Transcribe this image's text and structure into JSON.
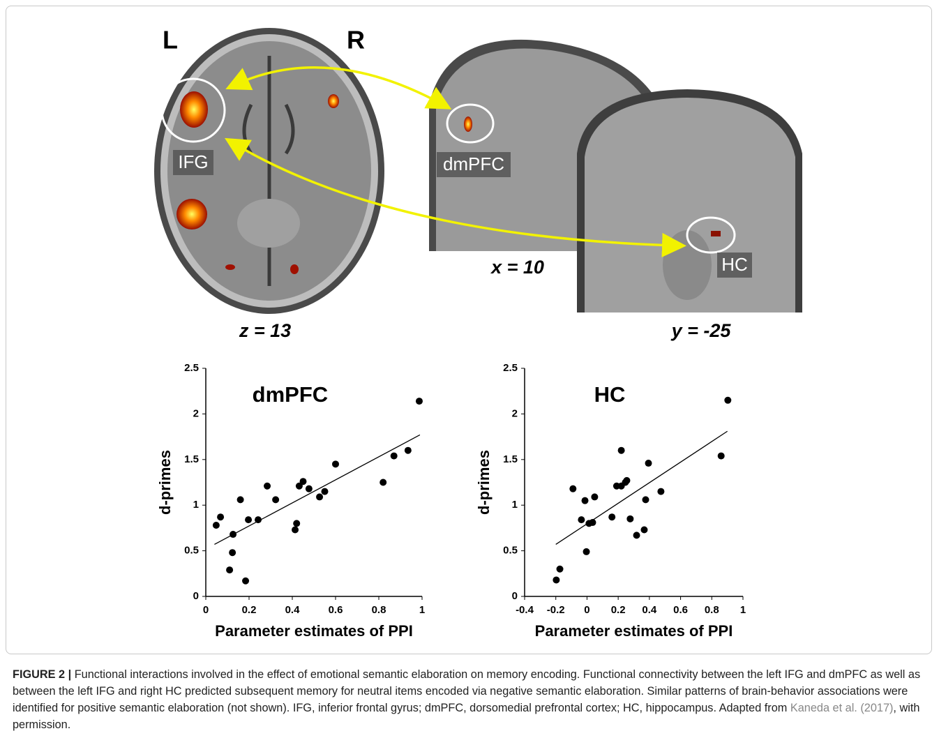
{
  "brain": {
    "left": "L",
    "right": "R",
    "ifg": "IFG",
    "dmpfc": "dmPFC",
    "hc": "HC",
    "axial": "z = 13",
    "sagittal": "x = 10",
    "coronal": "y = -25"
  },
  "chart_data": [
    {
      "type": "scatter",
      "title": "dmPFC",
      "x_label": "Parameter estimates of PPI",
      "y_label": "d-primes",
      "x": [
        0.048,
        0.068,
        0.16,
        0.126,
        0.123,
        0.11,
        0.184,
        0.197,
        0.242,
        0.284,
        0.323,
        0.413,
        0.42,
        0.432,
        0.45,
        0.477,
        0.526,
        0.55,
        0.6,
        0.82,
        0.87,
        0.935,
        0.987
      ],
      "values": [
        0.78,
        0.87,
        1.06,
        0.68,
        0.48,
        0.29,
        0.17,
        0.84,
        0.84,
        1.21,
        1.06,
        0.73,
        0.8,
        1.21,
        1.26,
        1.18,
        1.09,
        1.15,
        1.45,
        1.25,
        1.54,
        1.6,
        2.14
      ],
      "color": "#000000",
      "fit": {
        "x": [
          0.04,
          0.99
        ],
        "y": [
          0.57,
          1.77
        ]
      },
      "xlim": [
        0,
        1
      ],
      "xticks": [
        0,
        0.2,
        0.4,
        0.6,
        0.8,
        1
      ],
      "ylim": [
        0,
        2.5
      ],
      "yticks": [
        0,
        0.5,
        1,
        1.5,
        2,
        2.5
      ]
    },
    {
      "type": "scatter",
      "title": "HC",
      "x_label": "Parameter estimates of PPI",
      "y_label": "d-primes",
      "x": [
        -0.197,
        -0.174,
        -0.09,
        -0.036,
        -0.013,
        -0.004,
        0.013,
        0.036,
        0.049,
        0.16,
        0.19,
        0.22,
        0.22,
        0.246,
        0.255,
        0.277,
        0.318,
        0.367,
        0.376,
        0.394,
        0.474,
        0.86,
        0.903
      ],
      "values": [
        0.18,
        0.3,
        1.18,
        0.84,
        1.05,
        0.49,
        0.8,
        0.81,
        1.09,
        0.87,
        1.21,
        1.6,
        1.21,
        1.25,
        1.27,
        0.85,
        0.67,
        0.73,
        1.06,
        1.46,
        1.15,
        1.54,
        2.15
      ],
      "color": "#000000",
      "fit": {
        "x": [
          -0.2,
          0.9
        ],
        "y": [
          0.57,
          1.81
        ]
      },
      "xlim": [
        -0.4,
        1
      ],
      "xticks": [
        -0.4,
        -0.2,
        0,
        0.2,
        0.4,
        0.6,
        0.8,
        1
      ],
      "ylim": [
        0,
        2.5
      ],
      "yticks": [
        0,
        0.5,
        1,
        1.5,
        2,
        2.5
      ]
    }
  ],
  "caption": {
    "label": "FIGURE 2 |",
    "text": " Functional interactions involved in the effect of emotional semantic elaboration on memory encoding. Functional connectivity between the left IFG and dmPFC as well as between the left IFG and right HC predicted subsequent memory for neutral items encoded via negative semantic elaboration. Similar patterns of brain-behavior associations were identified for positive semantic elaboration (not shown). IFG, inferior frontal gyrus; dmPFC, dorsomedial prefrontal cortex; HC, hippocampus. Adapted from ",
    "citation": "Kaneda et al. (2017)",
    "tail": ", with permission."
  }
}
